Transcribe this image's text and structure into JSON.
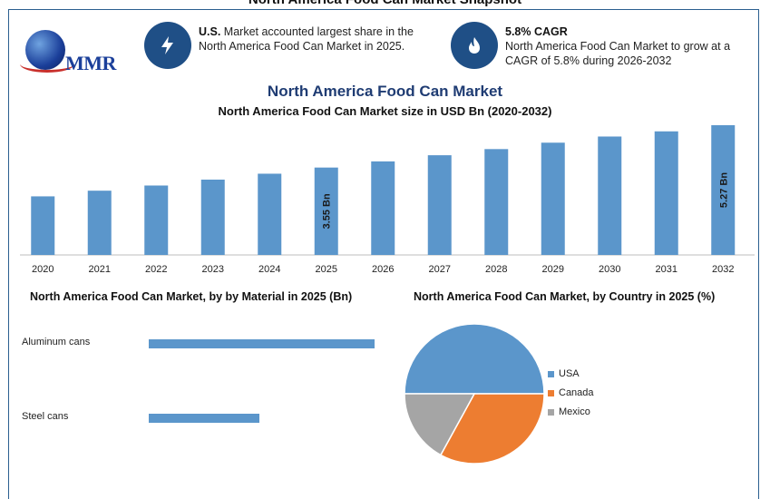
{
  "page": {
    "top_title": "North America Food Can Market Snapshot"
  },
  "colors": {
    "accent": "#1f4f86",
    "bar": "#5b96cb",
    "usa": "#5b96cb",
    "canada": "#ed7d31",
    "mexico": "#a5a5a5"
  },
  "logo": {
    "text": "MMR"
  },
  "info_cards": [
    {
      "icon": "lightning-icon",
      "bold": "U.S.",
      "text": " Market accounted largest share in the North America Food Can Market in 2025."
    },
    {
      "icon": "flame-icon",
      "bold": "5.8% CAGR",
      "text": "North America Food Can Market to grow at a CAGR of 5.8% during 2026-2032"
    }
  ],
  "main": {
    "title": "North America Food Can Market",
    "subtitle": "North America Food Can Market size in USD Bn (2020-2032)"
  },
  "chart_data": [
    {
      "type": "bar",
      "title": "North America Food Can Market size in USD Bn (2020-2032)",
      "categories": [
        "2020",
        "2021",
        "2022",
        "2023",
        "2024",
        "2025",
        "2026",
        "2027",
        "2028",
        "2029",
        "2030",
        "2031",
        "2032"
      ],
      "values": [
        2.38,
        2.61,
        2.82,
        3.06,
        3.3,
        3.55,
        3.8,
        4.05,
        4.3,
        4.56,
        4.81,
        5.02,
        5.27
      ],
      "data_labels": {
        "5": "3.55 Bn",
        "12": "5.27 Bn"
      },
      "ylim": [
        0,
        5.5
      ],
      "grid": false
    },
    {
      "type": "bar",
      "orientation": "horizontal",
      "title": "North America Food Can Market, by by Material in 2025 (Bn)",
      "categories": [
        "Aluminum cans",
        "Steel cans"
      ],
      "values": [
        2.38,
        1.17
      ],
      "xlim": [
        0,
        2.5
      ]
    },
    {
      "type": "pie",
      "title": "North America Food Can Market, by Country in 2025 (%)",
      "categories": [
        "USA",
        "Canada",
        "Mexico"
      ],
      "values": [
        50,
        33,
        17
      ],
      "legend": "right"
    }
  ]
}
